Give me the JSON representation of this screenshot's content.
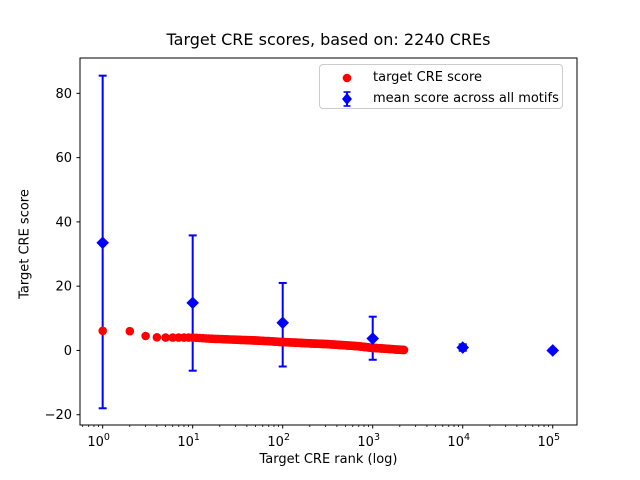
{
  "chart_data": {
    "type": "scatter",
    "title": "Target CRE scores, based on: 2240 CREs",
    "xlabel": "Target CRE rank (log)",
    "ylabel": "Target CRE score",
    "x_scale": "log",
    "grid": false,
    "legend_position": "upper right",
    "xlim": [
      0.56,
      186000
    ],
    "ylim": [
      -23.2,
      91
    ],
    "xticks": [
      {
        "value": 1,
        "base": "10",
        "exp": "0"
      },
      {
        "value": 10,
        "base": "10",
        "exp": "1"
      },
      {
        "value": 100,
        "base": "10",
        "exp": "2"
      },
      {
        "value": 1000,
        "base": "10",
        "exp": "3"
      },
      {
        "value": 10000,
        "base": "10",
        "exp": "4"
      },
      {
        "value": 100000,
        "base": "10",
        "exp": "5"
      }
    ],
    "yticks": [
      {
        "value": -20,
        "label": "−20"
      },
      {
        "value": 0,
        "label": "0"
      },
      {
        "value": 20,
        "label": "20"
      },
      {
        "value": 40,
        "label": "40"
      },
      {
        "value": 60,
        "label": "60"
      },
      {
        "value": 80,
        "label": "80"
      }
    ],
    "series": [
      {
        "name": "target CRE score",
        "type": "scatter",
        "marker": "circle",
        "color": "#ff0000",
        "n_points": 2240,
        "points": [
          [
            1,
            6.1
          ],
          [
            2,
            6.0
          ],
          [
            3,
            4.5
          ],
          [
            4,
            4.1
          ],
          [
            5,
            4.0
          ],
          [
            7,
            4.0
          ],
          [
            10,
            4.0
          ],
          [
            15,
            3.7
          ],
          [
            20,
            3.55
          ],
          [
            30,
            3.35
          ],
          [
            50,
            3.1
          ],
          [
            70,
            2.9
          ],
          [
            100,
            2.6
          ],
          [
            150,
            2.4
          ],
          [
            200,
            2.2
          ],
          [
            300,
            2.0
          ],
          [
            500,
            1.6
          ],
          [
            700,
            1.3
          ],
          [
            1000,
            0.8
          ],
          [
            1400,
            0.55
          ],
          [
            1800,
            0.3
          ],
          [
            2240,
            0.15
          ]
        ]
      },
      {
        "name": "mean score across all motifs",
        "type": "errorbar",
        "marker": "diamond",
        "color": "#0000ff",
        "points": [
          {
            "x": 1,
            "y": 33.5,
            "lo": -18.0,
            "hi": 85.5
          },
          {
            "x": 10,
            "y": 14.8,
            "lo": -6.3,
            "hi": 35.8
          },
          {
            "x": 100,
            "y": 8.6,
            "lo": -5.0,
            "hi": 21.0
          },
          {
            "x": 1000,
            "y": 3.7,
            "lo": -2.9,
            "hi": 10.5
          },
          {
            "x": 10000,
            "y": 0.9,
            "lo": -0.1,
            "hi": 1.9
          },
          {
            "x": 100000,
            "y": 0.0,
            "lo": -0.5,
            "hi": 0.5
          }
        ]
      }
    ]
  }
}
